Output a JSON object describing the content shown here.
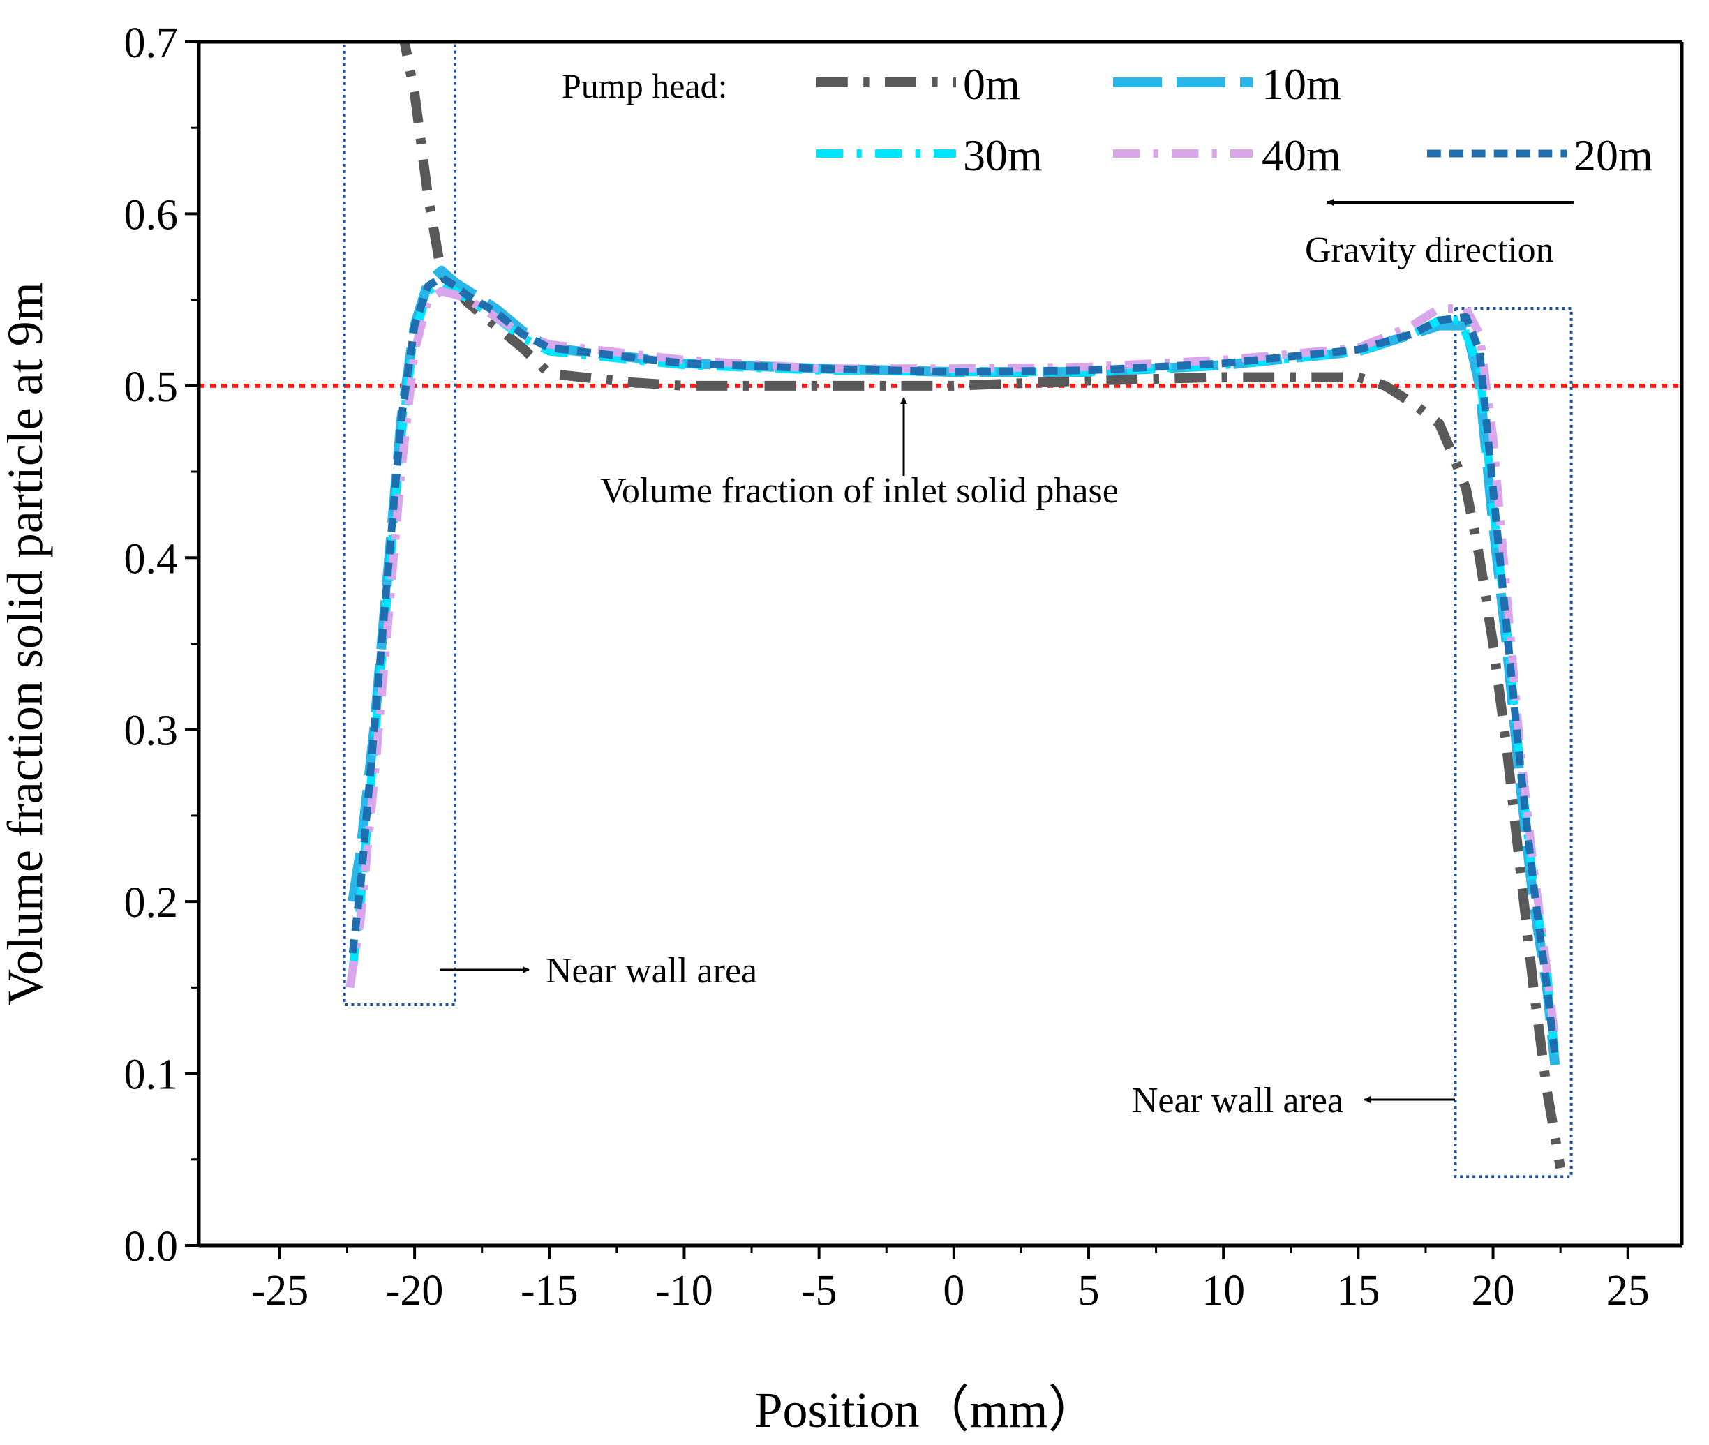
{
  "chart_data": {
    "type": "line",
    "title": "",
    "xlabel": "Position（mm）",
    "ylabel": "Volume fraction  solid particle at 9m",
    "xlim": [
      -28,
      27
    ],
    "ylim": [
      0,
      0.7
    ],
    "x_ticks": [
      -25,
      -20,
      -15,
      -10,
      -5,
      0,
      5,
      10,
      15,
      20,
      25
    ],
    "x_tick_labels": [
      "-25",
      "-20",
      "-15",
      "-10",
      "-5",
      "0",
      "5",
      "10",
      "15",
      "20",
      "25"
    ],
    "y_ticks": [
      0,
      0.1,
      0.2,
      0.3,
      0.4,
      0.5,
      0.6,
      0.7
    ],
    "y_tick_labels": [
      "0.0",
      "0.1",
      "0.2",
      "0.3",
      "0.4",
      "0.5",
      "0.6",
      "0.7"
    ],
    "grid": false,
    "legend": {
      "heading": "Pump head:",
      "placement": "top-right",
      "entries": [
        "0m",
        "10m",
        "30m",
        "40m",
        "20m"
      ]
    },
    "series": [
      {
        "name": "0m",
        "color": "#595959",
        "dash": "dashdot",
        "width": 14,
        "x": [
          -20.5,
          -20,
          -19.5,
          -19,
          -18,
          -17,
          -16,
          -15,
          -12,
          -10,
          -5,
          0,
          5,
          10,
          13,
          15,
          16,
          17,
          18,
          18.5,
          19,
          19.5,
          20,
          20.5,
          21,
          21.5,
          22,
          22.5
        ],
        "y": [
          0.71,
          0.67,
          0.61,
          0.565,
          0.548,
          0.535,
          0.522,
          0.507,
          0.502,
          0.5,
          0.5,
          0.5,
          0.503,
          0.505,
          0.505,
          0.505,
          0.5,
          0.49,
          0.478,
          0.46,
          0.44,
          0.4,
          0.35,
          0.29,
          0.22,
          0.15,
          0.09,
          0.045
        ]
      },
      {
        "name": "10m",
        "color": "#29b6e8",
        "dash": "longdash",
        "width": 14,
        "x": [
          -22.3,
          -22,
          -21.5,
          -21,
          -20.5,
          -20,
          -19.5,
          -19,
          -18.5,
          -18,
          -17,
          -16,
          -15,
          -10,
          -5,
          0,
          5,
          10,
          15,
          17,
          18,
          19,
          19.5,
          20,
          20.5,
          21,
          21.5,
          22,
          22.3
        ],
        "y": [
          0.2,
          0.23,
          0.3,
          0.39,
          0.48,
          0.535,
          0.56,
          0.567,
          0.56,
          0.555,
          0.545,
          0.532,
          0.522,
          0.513,
          0.51,
          0.508,
          0.508,
          0.512,
          0.52,
          0.53,
          0.535,
          0.535,
          0.5,
          0.42,
          0.35,
          0.27,
          0.2,
          0.15,
          0.105
        ]
      },
      {
        "name": "30m",
        "color": "#00e5ff",
        "dash": "dashdot",
        "width": 12,
        "x": [
          -22.3,
          -22,
          -21.5,
          -21,
          -20.5,
          -20,
          -19.5,
          -19,
          -18.5,
          -18,
          -17,
          -16,
          -15,
          -10,
          -5,
          0,
          5,
          10,
          15,
          17,
          18,
          18.8,
          19.5,
          20,
          20.5,
          21,
          21.5,
          22,
          22.3
        ],
        "y": [
          0.16,
          0.2,
          0.29,
          0.38,
          0.47,
          0.53,
          0.555,
          0.56,
          0.555,
          0.55,
          0.54,
          0.528,
          0.52,
          0.512,
          0.509,
          0.508,
          0.508,
          0.512,
          0.52,
          0.53,
          0.538,
          0.538,
          0.51,
          0.43,
          0.36,
          0.28,
          0.21,
          0.16,
          0.11
        ]
      },
      {
        "name": "40m",
        "color": "#d9a6ec",
        "dash": "dashdot",
        "width": 12,
        "x": [
          -22.4,
          -22,
          -21.5,
          -21,
          -20.5,
          -20,
          -19.5,
          -19,
          -18.5,
          -18,
          -17,
          -16,
          -15,
          -10,
          -5,
          0,
          5,
          10,
          15,
          17,
          18,
          19,
          19.5,
          20,
          20.5,
          21,
          21.5,
          22,
          22.3
        ],
        "y": [
          0.15,
          0.19,
          0.27,
          0.36,
          0.45,
          0.52,
          0.55,
          0.555,
          0.553,
          0.55,
          0.54,
          0.53,
          0.524,
          0.515,
          0.51,
          0.51,
          0.511,
          0.515,
          0.522,
          0.535,
          0.545,
          0.545,
          0.53,
          0.47,
          0.38,
          0.29,
          0.22,
          0.16,
          0.12
        ]
      },
      {
        "name": "20m",
        "color": "#1f6fb0",
        "dash": "shortdash",
        "width": 11,
        "x": [
          -22.3,
          -22,
          -21.5,
          -21,
          -20.5,
          -20,
          -19.5,
          -19,
          -18.5,
          -18,
          -17,
          -16,
          -15,
          -10,
          -5,
          0,
          5,
          10,
          15,
          17,
          18,
          19,
          19.5,
          20,
          20.5,
          21,
          21.5,
          22,
          22.3
        ],
        "y": [
          0.17,
          0.21,
          0.3,
          0.39,
          0.48,
          0.535,
          0.558,
          0.563,
          0.558,
          0.552,
          0.543,
          0.53,
          0.522,
          0.513,
          0.51,
          0.508,
          0.509,
          0.513,
          0.521,
          0.53,
          0.538,
          0.54,
          0.52,
          0.44,
          0.36,
          0.28,
          0.21,
          0.15,
          0.11
        ]
      }
    ],
    "reference_line": {
      "y": 0.5,
      "color": "#ff1a1a",
      "label": "Volume fraction of inlet solid phase"
    },
    "near_wall_boxes": [
      {
        "x_range": [
          -22.6,
          -18.5
        ],
        "y_range": [
          0.14,
          0.7
        ],
        "label": "Near wall area"
      },
      {
        "x_range": [
          18.6,
          22.9
        ],
        "y_range": [
          0.04,
          0.545
        ],
        "label": "Near wall area"
      }
    ],
    "gravity": {
      "label": "Gravity direction",
      "direction": "left"
    }
  }
}
